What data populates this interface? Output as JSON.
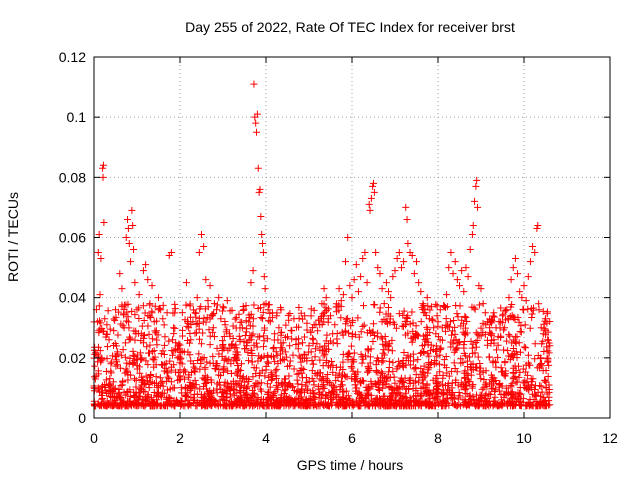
{
  "chart_data": {
    "type": "scatter",
    "title": "Day 255 of 2022, Rate Of TEC Index for receiver brst",
    "xlabel": "GPS time / hours",
    "ylabel": "ROTI / TECUs",
    "xlim": [
      0,
      12
    ],
    "ylim": [
      0,
      0.12
    ],
    "x_ticks": [
      0,
      2,
      4,
      6,
      8,
      10,
      12
    ],
    "y_ticks": [
      0,
      0.02,
      0.04,
      0.06,
      0.08,
      0.1,
      0.12
    ],
    "x_tick_labels": [
      "0",
      "2",
      "4",
      "6",
      "8",
      "10",
      "12"
    ],
    "y_tick_labels": [
      "0",
      "0.02",
      "0.04",
      "0.06",
      "0.08",
      "0.1",
      "0.12"
    ],
    "grid": true,
    "marker": "+",
    "marker_color": "#ff0000",
    "series": [
      {
        "values_note": "",
        "points": [
          [
            0.0,
            0.01
          ],
          [
            0.05,
            0.014
          ],
          [
            0.08,
            0.032
          ],
          [
            0.1,
            0.055
          ],
          [
            0.12,
            0.061
          ],
          [
            0.14,
            0.041
          ],
          [
            0.16,
            0.053
          ],
          [
            0.18,
            0.02
          ],
          [
            0.2,
            0.083
          ],
          [
            0.21,
            0.08
          ],
          [
            0.22,
            0.084
          ],
          [
            0.23,
            0.065
          ],
          [
            0.25,
            0.033
          ],
          [
            0.3,
            0.031
          ],
          [
            0.35,
            0.026
          ],
          [
            0.4,
            0.015
          ],
          [
            0.45,
            0.012
          ],
          [
            0.5,
            0.036
          ],
          [
            0.55,
            0.022
          ],
          [
            0.6,
            0.048
          ],
          [
            0.65,
            0.043
          ],
          [
            0.7,
            0.03
          ],
          [
            0.75,
            0.06
          ],
          [
            0.78,
            0.066
          ],
          [
            0.8,
            0.063
          ],
          [
            0.82,
            0.058
          ],
          [
            0.85,
            0.052
          ],
          [
            0.88,
            0.069
          ],
          [
            0.9,
            0.064
          ],
          [
            0.92,
            0.056
          ],
          [
            0.95,
            0.045
          ],
          [
            1.0,
            0.036
          ],
          [
            1.05,
            0.041
          ],
          [
            1.1,
            0.028
          ],
          [
            1.15,
            0.049
          ],
          [
            1.2,
            0.051
          ],
          [
            1.25,
            0.046
          ],
          [
            1.3,
            0.038
          ],
          [
            1.35,
            0.044
          ],
          [
            1.4,
            0.032
          ],
          [
            1.45,
            0.029
          ],
          [
            1.5,
            0.04
          ],
          [
            1.55,
            0.036
          ],
          [
            1.6,
            0.033
          ],
          [
            1.65,
            0.027
          ],
          [
            1.7,
            0.035
          ],
          [
            1.75,
            0.054
          ],
          [
            1.8,
            0.055
          ],
          [
            1.85,
            0.03
          ],
          [
            1.9,
            0.025
          ],
          [
            1.95,
            0.02
          ],
          [
            2.0,
            0.014
          ],
          [
            2.05,
            0.018
          ],
          [
            2.1,
            0.022
          ],
          [
            2.15,
            0.045
          ],
          [
            2.2,
            0.03
          ],
          [
            2.25,
            0.026
          ],
          [
            2.3,
            0.032
          ],
          [
            2.35,
            0.035
          ],
          [
            2.4,
            0.04
          ],
          [
            2.45,
            0.055
          ],
          [
            2.5,
            0.061
          ],
          [
            2.55,
            0.057
          ],
          [
            2.6,
            0.046
          ],
          [
            2.65,
            0.039
          ],
          [
            2.7,
            0.044
          ],
          [
            2.75,
            0.034
          ],
          [
            2.8,
            0.038
          ],
          [
            2.85,
            0.036
          ],
          [
            2.9,
            0.04
          ],
          [
            2.95,
            0.033
          ],
          [
            3.0,
            0.037
          ],
          [
            3.05,
            0.031
          ],
          [
            3.1,
            0.039
          ],
          [
            3.15,
            0.028
          ],
          [
            3.2,
            0.024
          ],
          [
            3.25,
            0.019
          ],
          [
            3.3,
            0.022
          ],
          [
            3.35,
            0.021
          ],
          [
            3.4,
            0.026
          ],
          [
            3.45,
            0.03
          ],
          [
            3.5,
            0.023
          ],
          [
            3.55,
            0.025
          ],
          [
            3.6,
            0.032
          ],
          [
            3.65,
            0.045
          ],
          [
            3.7,
            0.049
          ],
          [
            3.72,
            0.111
          ],
          [
            3.74,
            0.1
          ],
          [
            3.76,
            0.098
          ],
          [
            3.78,
            0.095
          ],
          [
            3.8,
            0.101
          ],
          [
            3.82,
            0.083
          ],
          [
            3.84,
            0.075
          ],
          [
            3.86,
            0.076
          ],
          [
            3.88,
            0.067
          ],
          [
            3.9,
            0.061
          ],
          [
            3.92,
            0.058
          ],
          [
            3.94,
            0.055
          ],
          [
            3.96,
            0.047
          ],
          [
            3.98,
            0.043
          ],
          [
            4.0,
            0.038
          ],
          [
            4.05,
            0.036
          ],
          [
            4.1,
            0.032
          ],
          [
            4.15,
            0.035
          ],
          [
            4.2,
            0.028
          ],
          [
            4.25,
            0.034
          ],
          [
            4.3,
            0.03
          ],
          [
            4.35,
            0.036
          ],
          [
            4.4,
            0.025
          ],
          [
            4.45,
            0.022
          ],
          [
            4.5,
            0.027
          ],
          [
            4.55,
            0.024
          ],
          [
            4.6,
            0.029
          ],
          [
            4.65,
            0.033
          ],
          [
            4.7,
            0.026
          ],
          [
            4.75,
            0.023
          ],
          [
            4.8,
            0.02
          ],
          [
            4.85,
            0.025
          ],
          [
            4.9,
            0.021
          ],
          [
            4.95,
            0.019
          ],
          [
            5.0,
            0.024
          ],
          [
            5.05,
            0.022
          ],
          [
            5.1,
            0.026
          ],
          [
            5.15,
            0.023
          ],
          [
            5.2,
            0.029
          ],
          [
            5.25,
            0.031
          ],
          [
            5.3,
            0.038
          ],
          [
            5.35,
            0.043
          ],
          [
            5.4,
            0.04
          ],
          [
            5.45,
            0.033
          ],
          [
            5.5,
            0.034
          ],
          [
            5.55,
            0.028
          ],
          [
            5.6,
            0.031
          ],
          [
            5.65,
            0.037
          ],
          [
            5.7,
            0.043
          ],
          [
            5.75,
            0.039
          ],
          [
            5.8,
            0.041
          ],
          [
            5.85,
            0.052
          ],
          [
            5.9,
            0.06
          ],
          [
            5.95,
            0.044
          ],
          [
            6.0,
            0.04
          ],
          [
            6.05,
            0.046
          ],
          [
            6.1,
            0.051
          ],
          [
            6.15,
            0.042
          ],
          [
            6.2,
            0.047
          ],
          [
            6.25,
            0.053
          ],
          [
            6.3,
            0.055
          ],
          [
            6.35,
            0.045
          ],
          [
            6.4,
            0.071
          ],
          [
            6.42,
            0.069
          ],
          [
            6.45,
            0.073
          ],
          [
            6.48,
            0.077
          ],
          [
            6.5,
            0.078
          ],
          [
            6.52,
            0.075
          ],
          [
            6.55,
            0.055
          ],
          [
            6.6,
            0.05
          ],
          [
            6.65,
            0.048
          ],
          [
            6.7,
            0.043
          ],
          [
            6.75,
            0.038
          ],
          [
            6.8,
            0.045
          ],
          [
            6.85,
            0.042
          ],
          [
            6.9,
            0.04
          ],
          [
            6.95,
            0.047
          ],
          [
            7.0,
            0.049
          ],
          [
            7.05,
            0.053
          ],
          [
            7.1,
            0.055
          ],
          [
            7.15,
            0.05
          ],
          [
            7.2,
            0.052
          ],
          [
            7.25,
            0.07
          ],
          [
            7.28,
            0.066
          ],
          [
            7.3,
            0.058
          ],
          [
            7.35,
            0.055
          ],
          [
            7.4,
            0.054
          ],
          [
            7.45,
            0.048
          ],
          [
            7.5,
            0.052
          ],
          [
            7.55,
            0.045
          ],
          [
            7.6,
            0.042
          ],
          [
            7.65,
            0.038
          ],
          [
            7.7,
            0.035
          ],
          [
            7.75,
            0.04
          ],
          [
            7.8,
            0.033
          ],
          [
            7.85,
            0.037
          ],
          [
            7.9,
            0.03
          ],
          [
            7.95,
            0.028
          ],
          [
            8.0,
            0.032
          ],
          [
            8.05,
            0.026
          ],
          [
            8.1,
            0.03
          ],
          [
            8.15,
            0.037
          ],
          [
            8.2,
            0.041
          ],
          [
            8.25,
            0.05
          ],
          [
            8.3,
            0.055
          ],
          [
            8.35,
            0.048
          ],
          [
            8.4,
            0.052
          ],
          [
            8.45,
            0.046
          ],
          [
            8.5,
            0.044
          ],
          [
            8.55,
            0.049
          ],
          [
            8.6,
            0.042
          ],
          [
            8.65,
            0.05
          ],
          [
            8.7,
            0.047
          ],
          [
            8.75,
            0.056
          ],
          [
            8.8,
            0.061
          ],
          [
            8.82,
            0.064
          ],
          [
            8.85,
            0.072
          ],
          [
            8.88,
            0.077
          ],
          [
            8.9,
            0.079
          ],
          [
            8.92,
            0.07
          ],
          [
            8.95,
            0.044
          ],
          [
            9.0,
            0.043
          ],
          [
            9.05,
            0.038
          ],
          [
            9.1,
            0.035
          ],
          [
            9.15,
            0.032
          ],
          [
            9.2,
            0.03
          ],
          [
            9.25,
            0.028
          ],
          [
            9.3,
            0.026
          ],
          [
            9.35,
            0.03
          ],
          [
            9.4,
            0.027
          ],
          [
            9.45,
            0.032
          ],
          [
            9.5,
            0.034
          ],
          [
            9.55,
            0.03
          ],
          [
            9.6,
            0.036
          ],
          [
            9.65,
            0.04
          ],
          [
            9.7,
            0.046
          ],
          [
            9.75,
            0.05
          ],
          [
            9.8,
            0.053
          ],
          [
            9.85,
            0.048
          ],
          [
            9.9,
            0.042
          ],
          [
            9.95,
            0.04
          ],
          [
            10.0,
            0.044
          ],
          [
            10.05,
            0.039
          ],
          [
            10.1,
            0.047
          ],
          [
            10.15,
            0.052
          ],
          [
            10.2,
            0.057
          ],
          [
            10.25,
            0.055
          ],
          [
            10.3,
            0.063
          ],
          [
            10.32,
            0.064
          ],
          [
            10.35,
            0.036
          ],
          [
            10.4,
            0.03
          ],
          [
            10.45,
            0.028
          ],
          [
            10.5,
            0.033
          ],
          [
            10.55,
            0.026
          ],
          [
            10.6,
            0.024
          ]
        ]
      }
    ]
  }
}
